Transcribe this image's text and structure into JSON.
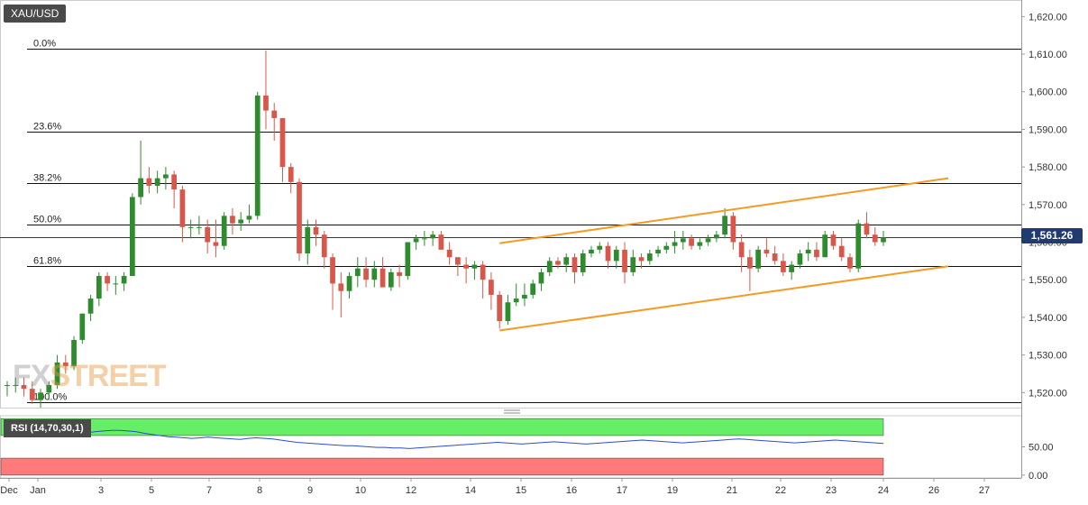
{
  "symbol": "XAU/USD",
  "watermark": {
    "left": "FX",
    "right": "STREET"
  },
  "last_price_label": "1,561.26",
  "chart_data": [
    {
      "type": "candlestick",
      "title": "XAU/USD",
      "ylim": [
        1516,
        1622
      ],
      "y_ticks": [
        "1,520.00",
        "1,530.00",
        "1,540.00",
        "1,550.00",
        "1,560.00",
        "1,570.00",
        "1,580.00",
        "1,590.00",
        "1,600.00",
        "1,610.00",
        "1,620.00"
      ],
      "y_tick_values": [
        1520,
        1530,
        1540,
        1550,
        1560,
        1570,
        1580,
        1590,
        1600,
        1610,
        1620
      ],
      "x_ticks": [
        "Dec",
        "Jan",
        "3",
        "5",
        "7",
        "8",
        "9",
        "10",
        "12",
        "14",
        "15",
        "16",
        "17",
        "19",
        "21",
        "22",
        "23",
        "24",
        "26",
        "27"
      ],
      "last_price": 1561.26,
      "fibonacci": [
        {
          "label": "0.0%",
          "price": 1611.5
        },
        {
          "label": "23.6%",
          "price": 1589.5
        },
        {
          "label": "38.2%",
          "price": 1575.8
        },
        {
          "label": "50.0%",
          "price": 1564.7
        },
        {
          "label": "61.8%",
          "price": 1553.6
        },
        {
          "label": "100.0%",
          "price": 1517.5
        }
      ],
      "channel_upper": [
        [
          1559.7,
          1577.0
        ]
      ],
      "channel_lower": [
        [
          1536.5,
          1553.6
        ]
      ],
      "candles": [
        [
          1522,
          1523,
          1519,
          1522
        ],
        [
          1522,
          1524,
          1520,
          1522
        ],
        [
          1522,
          1524,
          1519,
          1521
        ],
        [
          1521,
          1523,
          1517,
          1518
        ],
        [
          1518,
          1521,
          1516,
          1520
        ],
        [
          1520,
          1523,
          1518,
          1522
        ],
        [
          1522,
          1530,
          1521,
          1528
        ],
        [
          1528,
          1530,
          1525,
          1527
        ],
        [
          1527,
          1535,
          1526,
          1534
        ],
        [
          1534,
          1541,
          1533,
          1541
        ],
        [
          1541,
          1546,
          1539,
          1545
        ],
        [
          1545,
          1552,
          1543,
          1551
        ],
        [
          1551,
          1552,
          1547,
          1549
        ],
        [
          1549,
          1551,
          1546,
          1549
        ],
        [
          1549,
          1552,
          1547,
          1551
        ],
        [
          1551,
          1573,
          1551,
          1572
        ],
        [
          1572,
          1587,
          1570,
          1577
        ],
        [
          1577,
          1580,
          1573,
          1575
        ],
        [
          1575,
          1579,
          1573,
          1577
        ],
        [
          1577,
          1580,
          1574,
          1578
        ],
        [
          1578,
          1579,
          1569,
          1574
        ],
        [
          1574,
          1575,
          1560,
          1564
        ],
        [
          1564,
          1566,
          1561,
          1564
        ],
        [
          1564,
          1567,
          1562,
          1564
        ],
        [
          1564,
          1566,
          1557,
          1560
        ],
        [
          1560,
          1566,
          1556,
          1559
        ],
        [
          1559,
          1568,
          1558,
          1567
        ],
        [
          1567,
          1569,
          1562,
          1565
        ],
        [
          1565,
          1568,
          1563,
          1566
        ],
        [
          1566,
          1570,
          1565,
          1567
        ],
        [
          1567,
          1600,
          1566,
          1599
        ],
        [
          1599,
          1611,
          1590,
          1595
        ],
        [
          1595,
          1597,
          1587,
          1593
        ],
        [
          1593,
          1593,
          1576,
          1580
        ],
        [
          1580,
          1581,
          1573,
          1576
        ],
        [
          1576,
          1577,
          1555,
          1557
        ],
        [
          1557,
          1566,
          1554,
          1564
        ],
        [
          1564,
          1566,
          1559,
          1562
        ],
        [
          1562,
          1563,
          1553,
          1556
        ],
        [
          1556,
          1557,
          1542,
          1549
        ],
        [
          1549,
          1552,
          1540,
          1547
        ],
        [
          1547,
          1552,
          1545,
          1551
        ],
        [
          1551,
          1556,
          1548,
          1553
        ],
        [
          1553,
          1556,
          1548,
          1550
        ],
        [
          1550,
          1555,
          1548,
          1553
        ],
        [
          1553,
          1556,
          1548,
          1548
        ],
        [
          1548,
          1553,
          1547,
          1552
        ],
        [
          1552,
          1554,
          1548,
          1551
        ],
        [
          1551,
          1560,
          1550,
          1560
        ],
        [
          1560,
          1562,
          1558,
          1561
        ],
        [
          1561,
          1563,
          1559,
          1561
        ],
        [
          1561,
          1563,
          1559,
          1562
        ],
        [
          1562,
          1563,
          1558,
          1558
        ],
        [
          1558,
          1560,
          1554,
          1556
        ],
        [
          1556,
          1556,
          1551,
          1554
        ],
        [
          1554,
          1556,
          1549,
          1553
        ],
        [
          1553,
          1555,
          1550,
          1554
        ],
        [
          1554,
          1555,
          1545,
          1550
        ],
        [
          1550,
          1552,
          1542,
          1546
        ],
        [
          1546,
          1547,
          1537,
          1539
        ],
        [
          1539,
          1546,
          1538,
          1544
        ],
        [
          1544,
          1549,
          1543,
          1545
        ],
        [
          1545,
          1549,
          1543,
          1546
        ],
        [
          1546,
          1550,
          1545,
          1549
        ],
        [
          1549,
          1553,
          1547,
          1552
        ],
        [
          1552,
          1556,
          1551,
          1555
        ],
        [
          1555,
          1556,
          1553,
          1554
        ],
        [
          1554,
          1557,
          1552,
          1556
        ],
        [
          1556,
          1557,
          1549,
          1552
        ],
        [
          1552,
          1558,
          1551,
          1557
        ],
        [
          1557,
          1559,
          1556,
          1558
        ],
        [
          1558,
          1560,
          1557,
          1559
        ],
        [
          1559,
          1560,
          1553,
          1555
        ],
        [
          1555,
          1559,
          1553,
          1558
        ],
        [
          1558,
          1560,
          1549,
          1552
        ],
        [
          1552,
          1558,
          1551,
          1556
        ],
        [
          1556,
          1557,
          1553,
          1555
        ],
        [
          1555,
          1558,
          1554,
          1557
        ],
        [
          1557,
          1559,
          1556,
          1558
        ],
        [
          1558,
          1560,
          1557,
          1559
        ],
        [
          1559,
          1563,
          1557,
          1560
        ],
        [
          1560,
          1563,
          1558,
          1561
        ],
        [
          1561,
          1562,
          1558,
          1559
        ],
        [
          1559,
          1561,
          1558,
          1560
        ],
        [
          1560,
          1562,
          1559,
          1561
        ],
        [
          1561,
          1563,
          1560,
          1562
        ],
        [
          1562,
          1569,
          1561,
          1567
        ],
        [
          1567,
          1568,
          1558,
          1560
        ],
        [
          1560,
          1562,
          1552,
          1556
        ],
        [
          1556,
          1558,
          1547,
          1553
        ],
        [
          1553,
          1559,
          1552,
          1558
        ],
        [
          1558,
          1561,
          1556,
          1557
        ],
        [
          1557,
          1559,
          1554,
          1555
        ],
        [
          1555,
          1557,
          1551,
          1552
        ],
        [
          1552,
          1555,
          1550,
          1554
        ],
        [
          1554,
          1558,
          1553,
          1557
        ],
        [
          1557,
          1560,
          1555,
          1558
        ],
        [
          1558,
          1560,
          1555,
          1556
        ],
        [
          1556,
          1563,
          1556,
          1562
        ],
        [
          1562,
          1563,
          1558,
          1559
        ],
        [
          1559,
          1561,
          1555,
          1556
        ],
        [
          1556,
          1557,
          1552,
          1553
        ],
        [
          1553,
          1566,
          1552,
          1565
        ],
        [
          1565,
          1568,
          1561,
          1562
        ],
        [
          1562,
          1564,
          1559,
          1560
        ],
        [
          1560,
          1563,
          1559,
          1561.26
        ]
      ]
    },
    {
      "type": "line",
      "title": "RSI (14,70,30,1)",
      "ylim": [
        -5,
        105
      ],
      "y_ticks": [
        "0.00",
        "50.00"
      ],
      "y_tick_values": [
        0,
        50
      ],
      "zones": [
        {
          "from": 70,
          "to": 100,
          "color": "#66ee66"
        },
        {
          "from": 0,
          "to": 30,
          "color": "#ff7b7b"
        }
      ],
      "series": [
        {
          "values": [
            72,
            73,
            72,
            71,
            72,
            74,
            75,
            76,
            75,
            74,
            75,
            77,
            78,
            79,
            79,
            78,
            77,
            74,
            72,
            70,
            68,
            67,
            66,
            65,
            66,
            67,
            66,
            65,
            64,
            63,
            65,
            66,
            65,
            64,
            62,
            60,
            58,
            57,
            56,
            55,
            54,
            53,
            52,
            52,
            51,
            50,
            49,
            49,
            48,
            48,
            47,
            48,
            49,
            50,
            51,
            52,
            53,
            54,
            55,
            56,
            57,
            58,
            57,
            56,
            55,
            56,
            57,
            58,
            59,
            58,
            57,
            56,
            55,
            56,
            57,
            58,
            59,
            60,
            61,
            62,
            61,
            60,
            59,
            58,
            57,
            58,
            59,
            60,
            61,
            62,
            63,
            64,
            63,
            62,
            61,
            60,
            59,
            58,
            57,
            58,
            59,
            60,
            61,
            62,
            61,
            60,
            59,
            58,
            57,
            56
          ]
        }
      ]
    }
  ]
}
